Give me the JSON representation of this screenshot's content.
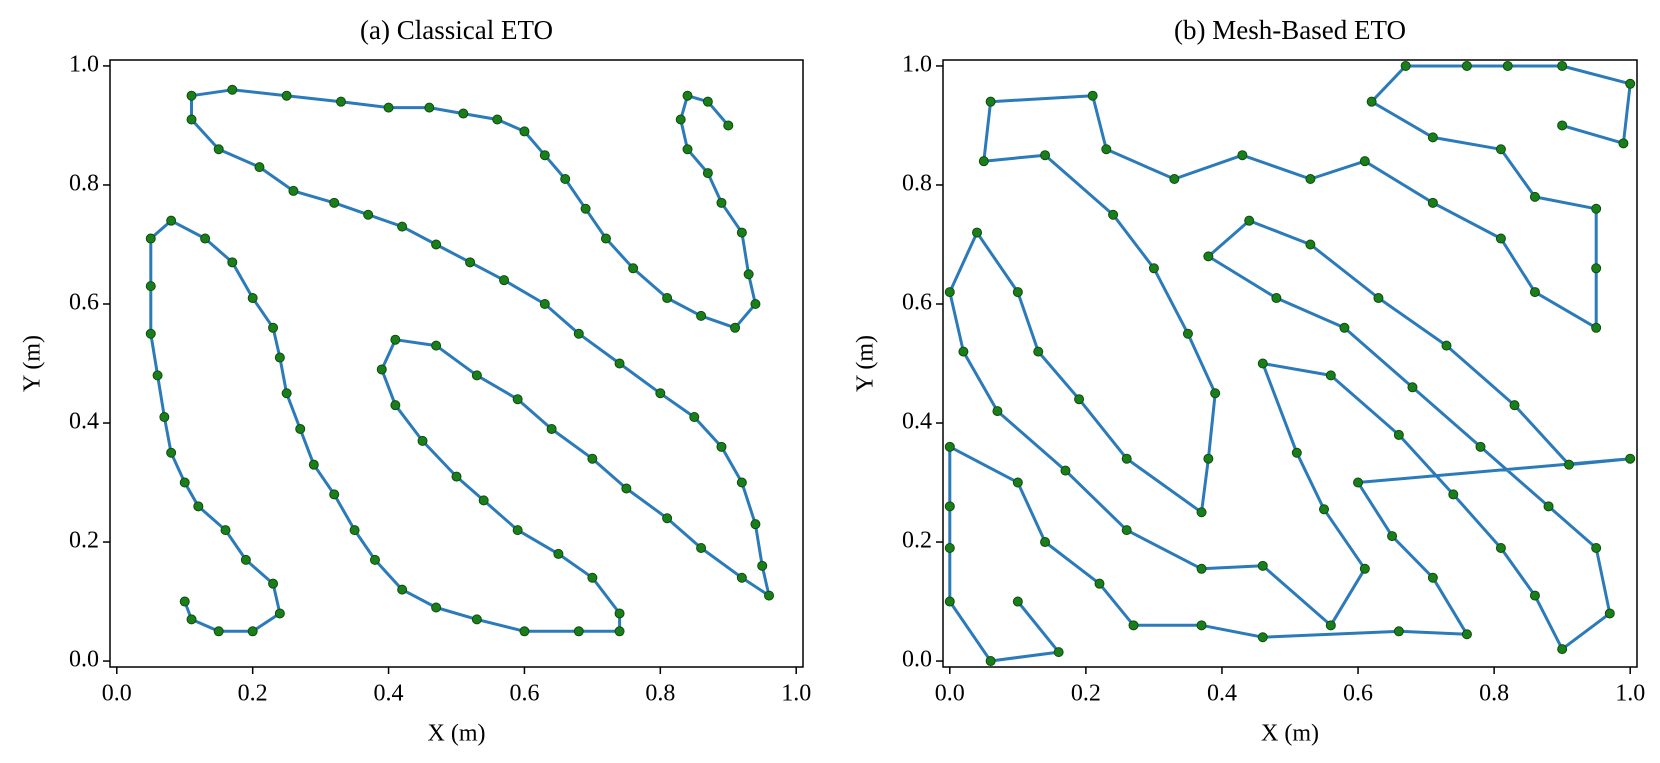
{
  "chart_data": [
    {
      "type": "line",
      "title": "(a) Classical ETO",
      "x_label": "X (m)",
      "y_label": "Y (m)",
      "color": "#2b7bba",
      "marker_color": "#1a7f1a",
      "xlim": [
        -0.01,
        1.01
      ],
      "ylim": [
        -0.01,
        1.01
      ],
      "xticks": [
        {
          "value": 0,
          "label": "0.0"
        },
        {
          "value": 0.2,
          "label": "0.2"
        },
        {
          "value": 0.4,
          "label": "0.4"
        },
        {
          "value": 0.6,
          "label": "0.6"
        },
        {
          "value": 0.8,
          "label": "0.8"
        },
        {
          "value": 1,
          "label": "1.0"
        }
      ],
      "yticks": [
        {
          "value": 0,
          "label": "0.0"
        },
        {
          "value": 0.2,
          "label": "0.2"
        },
        {
          "value": 0.4,
          "label": "0.4"
        },
        {
          "value": 0.6,
          "label": "0.6"
        },
        {
          "value": 0.8,
          "label": "0.8"
        },
        {
          "value": 1,
          "label": "1.0"
        }
      ],
      "x": [
        0.1,
        0.11,
        0.15,
        0.2,
        0.24,
        0.23,
        0.19,
        0.16,
        0.12,
        0.1,
        0.08,
        0.07,
        0.06,
        0.05,
        0.05,
        0.05,
        0.08,
        0.13,
        0.17,
        0.2,
        0.23,
        0.24,
        0.25,
        0.27,
        0.29,
        0.32,
        0.35,
        0.38,
        0.42,
        0.47,
        0.53,
        0.6,
        0.68,
        0.74,
        0.74,
        0.7,
        0.65,
        0.59,
        0.54,
        0.5,
        0.45,
        0.41,
        0.39,
        0.41,
        0.47,
        0.53,
        0.59,
        0.64,
        0.7,
        0.75,
        0.81,
        0.86,
        0.92,
        0.96,
        0.95,
        0.94,
        0.92,
        0.89,
        0.85,
        0.8,
        0.74,
        0.68,
        0.63,
        0.57,
        0.52,
        0.47,
        0.42,
        0.37,
        0.32,
        0.26,
        0.21,
        0.15,
        0.11,
        0.11,
        0.17,
        0.25,
        0.33,
        0.4,
        0.46,
        0.51,
        0.56,
        0.6,
        0.63,
        0.66,
        0.69,
        0.72,
        0.76,
        0.81,
        0.86,
        0.91,
        0.94,
        0.93,
        0.92,
        0.89,
        0.87,
        0.84,
        0.83,
        0.84,
        0.87,
        0.9
      ],
      "values": [
        0.1,
        0.07,
        0.05,
        0.05,
        0.08,
        0.13,
        0.17,
        0.22,
        0.26,
        0.3,
        0.35,
        0.41,
        0.48,
        0.55,
        0.63,
        0.71,
        0.74,
        0.71,
        0.67,
        0.61,
        0.56,
        0.51,
        0.45,
        0.39,
        0.33,
        0.28,
        0.22,
        0.17,
        0.12,
        0.09,
        0.07,
        0.05,
        0.05,
        0.05,
        0.08,
        0.14,
        0.18,
        0.22,
        0.27,
        0.31,
        0.37,
        0.43,
        0.49,
        0.54,
        0.53,
        0.48,
        0.44,
        0.39,
        0.34,
        0.29,
        0.24,
        0.19,
        0.14,
        0.11,
        0.16,
        0.23,
        0.3,
        0.36,
        0.41,
        0.45,
        0.5,
        0.55,
        0.6,
        0.64,
        0.67,
        0.7,
        0.73,
        0.75,
        0.77,
        0.79,
        0.83,
        0.86,
        0.91,
        0.95,
        0.96,
        0.95,
        0.94,
        0.93,
        0.93,
        0.92,
        0.91,
        0.89,
        0.85,
        0.81,
        0.76,
        0.71,
        0.66,
        0.61,
        0.58,
        0.56,
        0.6,
        0.65,
        0.72,
        0.77,
        0.82,
        0.86,
        0.91,
        0.95,
        0.94,
        0.9
      ]
    },
    {
      "type": "line",
      "title": "(b) Mesh-Based ETO",
      "x_label": "X (m)",
      "y_label": "Y (m)",
      "color": "#2b7bba",
      "marker_color": "#1a7f1a",
      "xlim": [
        -0.01,
        1.01
      ],
      "ylim": [
        -0.01,
        1.01
      ],
      "xticks": [
        {
          "value": 0,
          "label": "0.0"
        },
        {
          "value": 0.2,
          "label": "0.2"
        },
        {
          "value": 0.4,
          "label": "0.4"
        },
        {
          "value": 0.6,
          "label": "0.6"
        },
        {
          "value": 0.8,
          "label": "0.8"
        },
        {
          "value": 1,
          "label": "1.0"
        }
      ],
      "yticks": [
        {
          "value": 0,
          "label": "0.0"
        },
        {
          "value": 0.2,
          "label": "0.2"
        },
        {
          "value": 0.4,
          "label": "0.4"
        },
        {
          "value": 0.6,
          "label": "0.6"
        },
        {
          "value": 0.8,
          "label": "0.8"
        },
        {
          "value": 1,
          "label": "1.0"
        }
      ],
      "x": [
        0.9,
        0.99,
        1.0,
        0.9,
        0.82,
        0.76,
        0.67,
        0.62,
        0.71,
        0.81,
        0.86,
        0.95,
        0.95,
        0.95,
        0.86,
        0.81,
        0.71,
        0.61,
        0.53,
        0.43,
        0.33,
        0.23,
        0.21,
        0.06,
        0.05,
        0.14,
        0.24,
        0.3,
        0.35,
        0.39,
        0.38,
        0.37,
        0.26,
        0.19,
        0.13,
        0.1,
        0.04,
        0.0,
        0.02,
        0.07,
        0.17,
        0.26,
        0.37,
        0.46,
        0.56,
        0.61,
        0.55,
        0.51,
        0.46,
        0.56,
        0.66,
        0.74,
        0.81,
        0.86,
        0.9,
        0.97,
        0.95,
        0.88,
        0.78,
        0.68,
        0.58,
        0.48,
        0.38,
        0.44,
        0.53,
        0.63,
        0.73,
        0.83,
        0.91,
        1.0,
        0.6,
        0.65,
        0.71,
        0.76,
        0.66,
        0.46,
        0.37,
        0.27,
        0.22,
        0.14,
        0.1,
        0.0,
        0.0,
        0.0,
        0.0,
        0.06,
        0.16,
        0.1
      ],
      "values": [
        0.9,
        0.87,
        0.97,
        1.0,
        1.0,
        1.0,
        1.0,
        0.94,
        0.88,
        0.86,
        0.78,
        0.76,
        0.66,
        0.56,
        0.62,
        0.71,
        0.77,
        0.84,
        0.81,
        0.85,
        0.81,
        0.86,
        0.95,
        0.94,
        0.84,
        0.85,
        0.75,
        0.66,
        0.55,
        0.45,
        0.34,
        0.25,
        0.34,
        0.44,
        0.52,
        0.62,
        0.72,
        0.62,
        0.52,
        0.42,
        0.32,
        0.22,
        0.155,
        0.16,
        0.06,
        0.155,
        0.255,
        0.35,
        0.5,
        0.48,
        0.38,
        0.28,
        0.19,
        0.11,
        0.02,
        0.08,
        0.19,
        0.26,
        0.36,
        0.46,
        0.56,
        0.61,
        0.68,
        0.74,
        0.7,
        0.61,
        0.53,
        0.43,
        0.33,
        0.34,
        0.3,
        0.21,
        0.14,
        0.045,
        0.05,
        0.04,
        0.06,
        0.06,
        0.13,
        0.2,
        0.3,
        0.36,
        0.26,
        0.19,
        0.1,
        0.0,
        0.015,
        0.1
      ]
    }
  ]
}
